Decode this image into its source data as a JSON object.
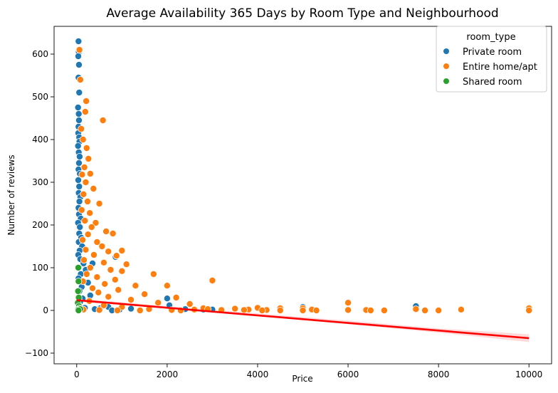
{
  "chart_data": {
    "type": "scatter",
    "title": "Average Availability 365 Days by Room Type and Neighbourhood",
    "xlabel": "Price",
    "ylabel": "Number of reviews",
    "xlim": [
      -500,
      10500
    ],
    "ylim": [
      -125,
      665
    ],
    "xticks": [
      0,
      2000,
      4000,
      6000,
      8000,
      10000
    ],
    "yticks": [
      -100,
      0,
      100,
      200,
      300,
      400,
      500,
      600
    ],
    "grid": false,
    "legend": {
      "title": "room_type",
      "placement": "top-right",
      "entries": [
        "Private room",
        "Entire home/apt",
        "Shared room"
      ]
    },
    "series": [
      {
        "name": "Private room",
        "color": "#1f77b4",
        "points": [
          [
            40,
            630
          ],
          [
            45,
            605
          ],
          [
            35,
            595
          ],
          [
            50,
            575
          ],
          [
            40,
            545
          ],
          [
            55,
            510
          ],
          [
            30,
            475
          ],
          [
            45,
            460
          ],
          [
            50,
            445
          ],
          [
            40,
            430
          ],
          [
            35,
            415
          ],
          [
            55,
            405
          ],
          [
            60,
            395
          ],
          [
            30,
            385
          ],
          [
            45,
            370
          ],
          [
            65,
            360
          ],
          [
            50,
            345
          ],
          [
            40,
            330
          ],
          [
            70,
            320
          ],
          [
            35,
            305
          ],
          [
            55,
            290
          ],
          [
            45,
            275
          ],
          [
            80,
            265
          ],
          [
            60,
            255
          ],
          [
            40,
            240
          ],
          [
            50,
            225
          ],
          [
            90,
            215
          ],
          [
            30,
            205
          ],
          [
            70,
            195
          ],
          [
            55,
            180
          ],
          [
            100,
            170
          ],
          [
            45,
            160
          ],
          [
            120,
            150
          ],
          [
            65,
            140
          ],
          [
            35,
            130
          ],
          [
            80,
            120
          ],
          [
            150,
            110
          ],
          [
            50,
            100
          ],
          [
            200,
            95
          ],
          [
            90,
            85
          ],
          [
            40,
            75
          ],
          [
            250,
            65
          ],
          [
            110,
            55
          ],
          [
            60,
            45
          ],
          [
            300,
            35
          ],
          [
            130,
            28
          ],
          [
            75,
            20
          ],
          [
            45,
            12
          ],
          [
            180,
            6
          ],
          [
            100,
            2
          ],
          [
            400,
            3
          ],
          [
            350,
            110
          ],
          [
            860,
            125
          ],
          [
            520,
            5
          ],
          [
            700,
            8
          ],
          [
            1200,
            4
          ],
          [
            2000,
            28
          ],
          [
            2050,
            12
          ],
          [
            2400,
            3
          ],
          [
            2800,
            2
          ],
          [
            3000,
            2
          ],
          [
            5000,
            8
          ],
          [
            7500,
            10
          ],
          [
            7500,
            2
          ],
          [
            950,
            2
          ],
          [
            780,
            0
          ]
        ]
      },
      {
        "name": "Entire home/apt",
        "color": "#ff7f0e",
        "points": [
          [
            60,
            610
          ],
          [
            80,
            540
          ],
          [
            210,
            490
          ],
          [
            190,
            465
          ],
          [
            580,
            445
          ],
          [
            100,
            425
          ],
          [
            140,
            400
          ],
          [
            220,
            380
          ],
          [
            260,
            355
          ],
          [
            170,
            335
          ],
          [
            120,
            318
          ],
          [
            300,
            320
          ],
          [
            200,
            300
          ],
          [
            370,
            285
          ],
          [
            150,
            272
          ],
          [
            240,
            255
          ],
          [
            500,
            250
          ],
          [
            110,
            235
          ],
          [
            290,
            228
          ],
          [
            180,
            210
          ],
          [
            420,
            205
          ],
          [
            330,
            195
          ],
          [
            650,
            185
          ],
          [
            250,
            178
          ],
          [
            800,
            180
          ],
          [
            130,
            165
          ],
          [
            450,
            160
          ],
          [
            560,
            150
          ],
          [
            200,
            142
          ],
          [
            700,
            138
          ],
          [
            1000,
            140
          ],
          [
            380,
            130
          ],
          [
            880,
            128
          ],
          [
            160,
            118
          ],
          [
            600,
            112
          ],
          [
            1100,
            108
          ],
          [
            300,
            100
          ],
          [
            750,
            95
          ],
          [
            1000,
            92
          ],
          [
            220,
            85
          ],
          [
            1700,
            85
          ],
          [
            450,
            78
          ],
          [
            850,
            72
          ],
          [
            140,
            68
          ],
          [
            620,
            62
          ],
          [
            1300,
            58
          ],
          [
            2000,
            58
          ],
          [
            350,
            52
          ],
          [
            920,
            48
          ],
          [
            480,
            42
          ],
          [
            1500,
            38
          ],
          [
            2200,
            30
          ],
          [
            700,
            32
          ],
          [
            1200,
            25
          ],
          [
            280,
            22
          ],
          [
            1800,
            18
          ],
          [
            2500,
            15
          ],
          [
            600,
            12
          ],
          [
            3000,
            70
          ],
          [
            1000,
            8
          ],
          [
            2800,
            5
          ],
          [
            3500,
            4
          ],
          [
            4000,
            6
          ],
          [
            3800,
            2
          ],
          [
            4200,
            1
          ],
          [
            4500,
            5
          ],
          [
            4500,
            0
          ],
          [
            5000,
            5
          ],
          [
            5000,
            0
          ],
          [
            5200,
            2
          ],
          [
            5300,
            0
          ],
          [
            6000,
            18
          ],
          [
            6000,
            1
          ],
          [
            6400,
            1
          ],
          [
            6500,
            0
          ],
          [
            6800,
            0
          ],
          [
            7500,
            3
          ],
          [
            7700,
            0
          ],
          [
            8000,
            0
          ],
          [
            8500,
            2
          ],
          [
            10000,
            5
          ],
          [
            10000,
            0
          ],
          [
            3200,
            1
          ],
          [
            2600,
            2
          ],
          [
            1600,
            3
          ],
          [
            1400,
            0
          ],
          [
            2100,
            1
          ],
          [
            900,
            0
          ],
          [
            500,
            1
          ],
          [
            150,
            2
          ],
          [
            2300,
            0
          ],
          [
            3700,
            1
          ],
          [
            4100,
            0
          ],
          [
            2900,
            3
          ]
        ]
      },
      {
        "name": "Shared room",
        "color": "#2ca02c",
        "points": [
          [
            35,
            100
          ],
          [
            40,
            68
          ],
          [
            30,
            45
          ],
          [
            45,
            30
          ],
          [
            25,
            18
          ],
          [
            50,
            10
          ],
          [
            60,
            5
          ],
          [
            30,
            2
          ],
          [
            80,
            3
          ],
          [
            40,
            0
          ]
        ]
      }
    ],
    "regression": {
      "color": "#ff0000",
      "from": [
        0,
        24
      ],
      "to": [
        10000,
        -65
      ],
      "ci_low": [
        [
          0,
          20
        ],
        [
          2000,
          5
        ],
        [
          4000,
          -13
        ],
        [
          6000,
          -32
        ],
        [
          8000,
          -52
        ],
        [
          10000,
          -74
        ]
      ],
      "ci_high": [
        [
          0,
          28
        ],
        [
          2000,
          10
        ],
        [
          4000,
          -7
        ],
        [
          6000,
          -24
        ],
        [
          8000,
          -42
        ],
        [
          10000,
          -56
        ]
      ]
    }
  }
}
